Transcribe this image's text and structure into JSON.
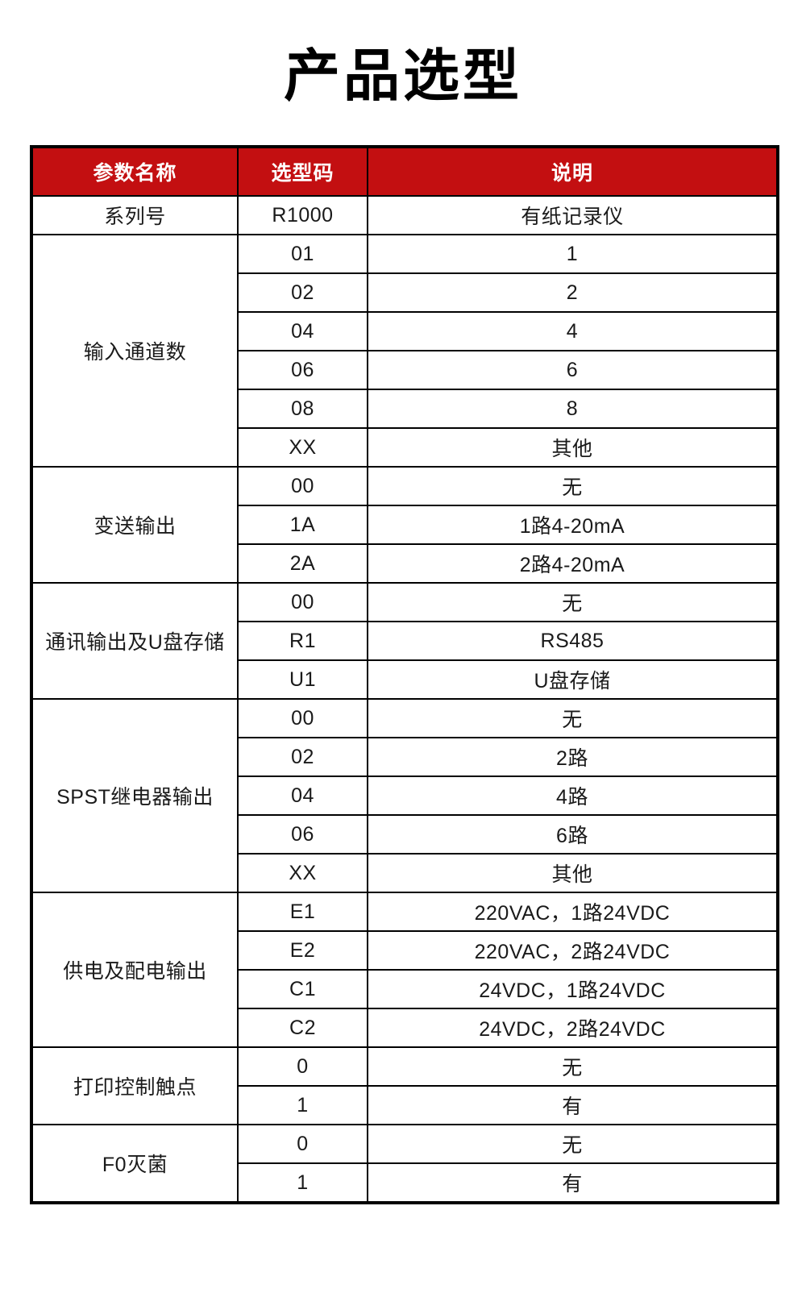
{
  "page": {
    "title": "产品选型"
  },
  "colors": {
    "header_bg": "#C30F11",
    "header_text": "#FFFFFF",
    "body_text": "#1A1A1A",
    "border": "#000000",
    "page_bg": "#FFFFFF"
  },
  "table": {
    "columns": [
      "参数名称",
      "选型码",
      "说明"
    ],
    "sections": [
      {
        "param": "系列号",
        "rows": [
          {
            "code": "R1000",
            "desc": "有纸记录仪"
          }
        ]
      },
      {
        "param": "输入通道数",
        "rows": [
          {
            "code": "01",
            "desc": "1"
          },
          {
            "code": "02",
            "desc": "2"
          },
          {
            "code": "04",
            "desc": "4"
          },
          {
            "code": "06",
            "desc": "6"
          },
          {
            "code": "08",
            "desc": "8"
          },
          {
            "code": "XX",
            "desc": "其他"
          }
        ]
      },
      {
        "param": "变送输出",
        "rows": [
          {
            "code": "00",
            "desc": "无"
          },
          {
            "code": "1A",
            "desc": "1路4-20mA"
          },
          {
            "code": "2A",
            "desc": "2路4-20mA"
          }
        ]
      },
      {
        "param": "通讯输出及U盘存储",
        "rows": [
          {
            "code": "00",
            "desc": "无"
          },
          {
            "code": "R1",
            "desc": "RS485"
          },
          {
            "code": "U1",
            "desc": "U盘存储"
          }
        ]
      },
      {
        "param": "SPST继电器输出",
        "rows": [
          {
            "code": "00",
            "desc": "无"
          },
          {
            "code": "02",
            "desc": "2路"
          },
          {
            "code": "04",
            "desc": "4路"
          },
          {
            "code": "06",
            "desc": "6路"
          },
          {
            "code": "XX",
            "desc": "其他"
          }
        ]
      },
      {
        "param": "供电及配电输出",
        "rows": [
          {
            "code": "E1",
            "desc": "220VAC，1路24VDC"
          },
          {
            "code": "E2",
            "desc": "220VAC，2路24VDC"
          },
          {
            "code": "C1",
            "desc": "24VDC，1路24VDC"
          },
          {
            "code": "C2",
            "desc": "24VDC，2路24VDC"
          }
        ]
      },
      {
        "param": "打印控制触点",
        "rows": [
          {
            "code": "0",
            "desc": "无"
          },
          {
            "code": "1",
            "desc": "有"
          }
        ]
      },
      {
        "param": "F0灭菌",
        "rows": [
          {
            "code": "0",
            "desc": "无"
          },
          {
            "code": "1",
            "desc": "有"
          }
        ]
      }
    ]
  }
}
